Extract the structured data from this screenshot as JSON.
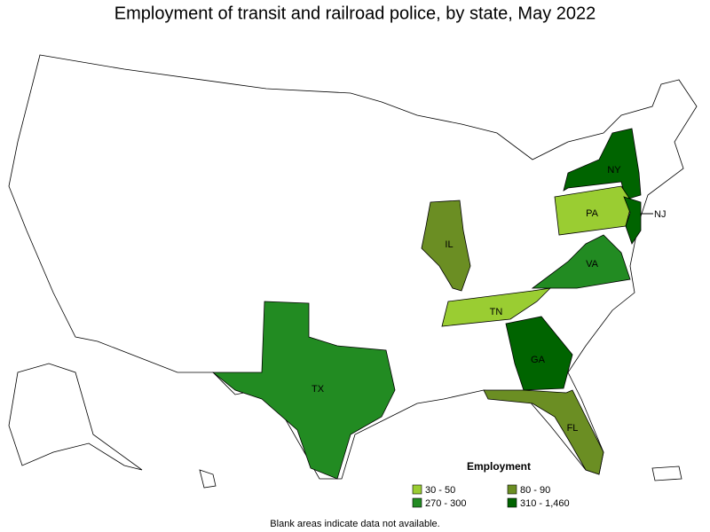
{
  "title": "Employment of transit and railroad police, by state, May 2022",
  "legend": {
    "title": "Employment",
    "items": [
      {
        "label": "30 - 50",
        "color": "#9acd32"
      },
      {
        "label": "80 - 90",
        "color": "#6b8e23"
      },
      {
        "label": "270 - 300",
        "color": "#228b22"
      },
      {
        "label": "310 - 1,460",
        "color": "#006400"
      }
    ]
  },
  "states": [
    {
      "label": "NY",
      "color": "#006400"
    },
    {
      "label": "PA",
      "color": "#9acd32"
    },
    {
      "label": "NJ",
      "color": "#006400"
    },
    {
      "label": "IL",
      "color": "#6b8e23"
    },
    {
      "label": "VA",
      "color": "#228b22"
    },
    {
      "label": "TN",
      "color": "#9acd32"
    },
    {
      "label": "GA",
      "color": "#006400"
    },
    {
      "label": "TX",
      "color": "#228b22"
    },
    {
      "label": "FL",
      "color": "#6b8e23"
    }
  ],
  "footnote": "Blank areas indicate data not available."
}
